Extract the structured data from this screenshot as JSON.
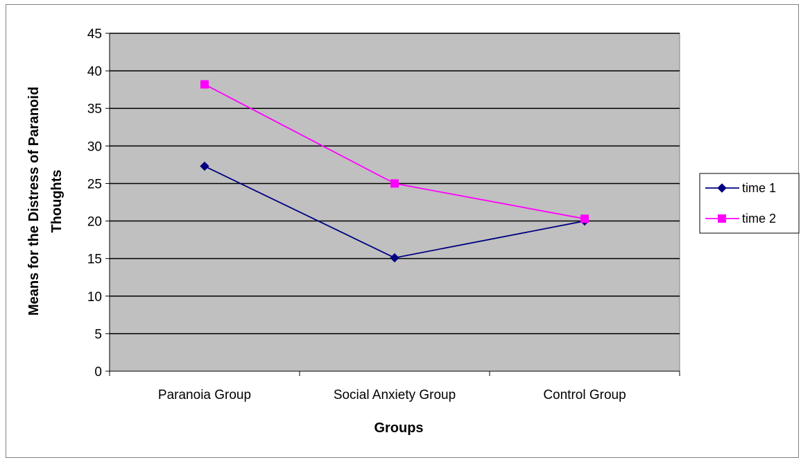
{
  "chart_data": {
    "type": "line",
    "title": "",
    "xlabel": "Groups",
    "ylabel_lines": [
      "Means for the Distress of Paranoid",
      "Thoughts"
    ],
    "categories": [
      "Paranoia Group",
      "Social Anxiety Group",
      "Control Group"
    ],
    "ylim": [
      0,
      45
    ],
    "yticks": [
      0,
      5,
      10,
      15,
      20,
      25,
      30,
      35,
      40,
      45
    ],
    "grid": true,
    "legend_position": "right",
    "plot_background": "#c0c0c0",
    "series": [
      {
        "name": "time 1",
        "marker": "diamond",
        "color": "#000080",
        "values": [
          27.3,
          15.1,
          20.0
        ]
      },
      {
        "name": "time 2",
        "marker": "square",
        "color": "#ff00ff",
        "values": [
          38.2,
          25.0,
          20.3
        ]
      }
    ]
  }
}
